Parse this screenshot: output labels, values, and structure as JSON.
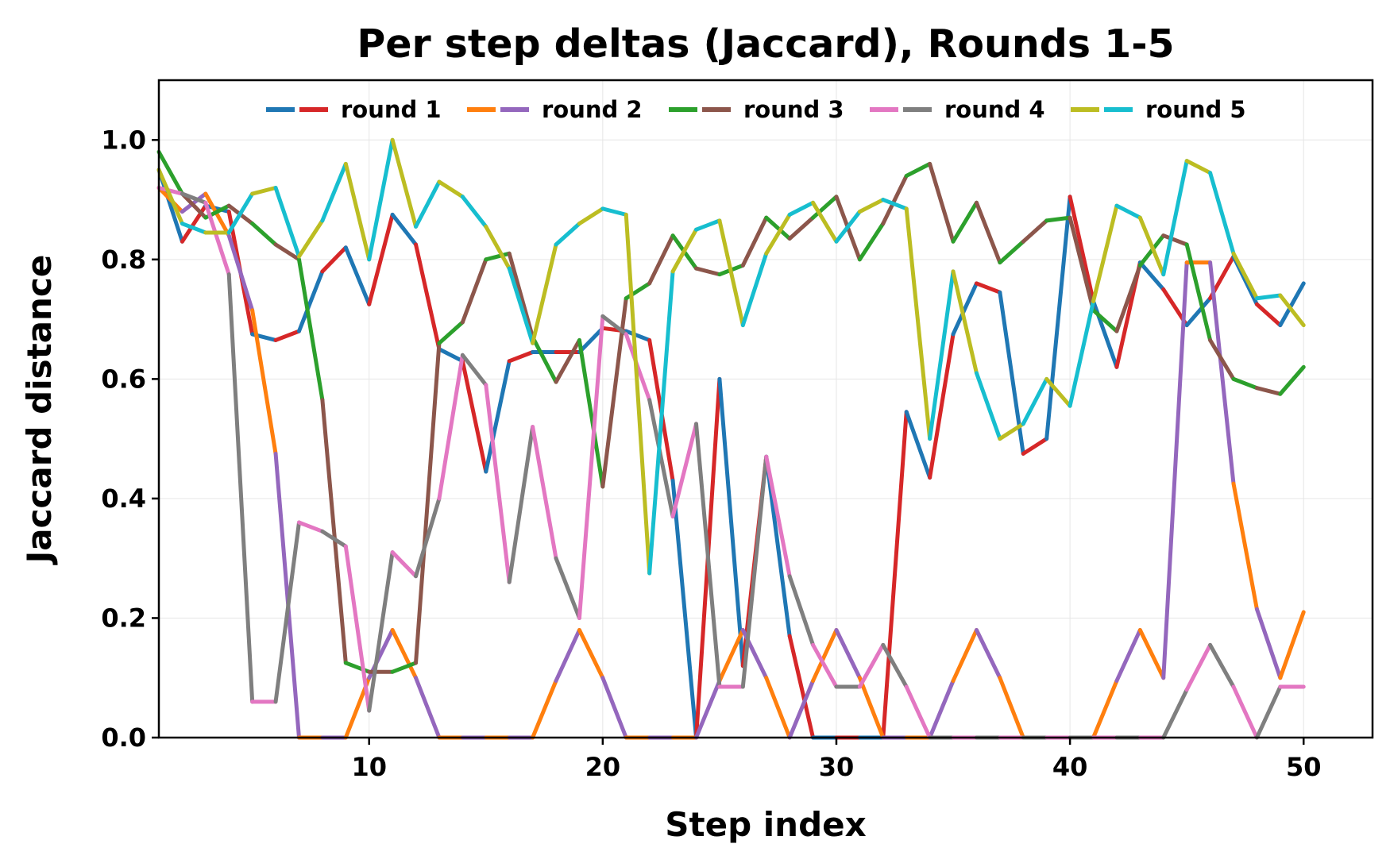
{
  "chart_data": {
    "type": "line",
    "title": "Per step deltas (Jaccard), Rounds 1-5",
    "xlabel": "Step index",
    "ylabel": "Jaccard distance",
    "xlim": [
      1,
      52.95
    ],
    "ylim": [
      0,
      1.1
    ],
    "xticks": [
      10,
      20,
      30,
      40,
      50
    ],
    "yticks": [
      0.0,
      0.2,
      0.4,
      0.6,
      0.8,
      1.0
    ],
    "grid": true,
    "legend_position": "top-center",
    "x": [
      1,
      2,
      3,
      4,
      5,
      6,
      7,
      8,
      9,
      10,
      11,
      12,
      13,
      14,
      15,
      16,
      17,
      18,
      19,
      20,
      21,
      22,
      23,
      24,
      25,
      26,
      27,
      28,
      29,
      30,
      31,
      32,
      33,
      34,
      35,
      36,
      37,
      38,
      39,
      40,
      41,
      42,
      43,
      44,
      45,
      46,
      47,
      48,
      49,
      50
    ],
    "series": [
      {
        "name": "round 1",
        "colors": [
          "#1f77b4",
          "#d62728"
        ],
        "values": [
          0.95,
          0.83,
          0.89,
          0.88,
          0.675,
          0.665,
          0.68,
          0.78,
          0.82,
          0.725,
          0.875,
          0.825,
          0.65,
          0.63,
          0.445,
          0.63,
          0.645,
          0.645,
          0.645,
          0.685,
          0.68,
          0.665,
          0.43,
          0.0,
          0.6,
          0.12,
          0.47,
          0.17,
          0.0,
          0.0,
          0.0,
          0.0,
          0.545,
          0.435,
          0.675,
          0.76,
          0.745,
          0.475,
          0.5,
          0.905,
          0.73,
          0.62,
          0.795,
          0.75,
          0.69,
          0.735,
          0.805,
          0.725,
          0.69,
          0.76
        ]
      },
      {
        "name": "round 2",
        "colors": [
          "#ff7f0e",
          "#9467bd"
        ],
        "values": [
          0.92,
          0.88,
          0.91,
          0.84,
          0.715,
          0.475,
          0.0,
          0.0,
          0.0,
          0.1,
          0.18,
          0.1,
          0.0,
          0.0,
          0.0,
          0.0,
          0.0,
          0.095,
          0.18,
          0.1,
          0.0,
          0.0,
          0.0,
          0.0,
          0.095,
          0.18,
          0.1,
          0.0,
          0.095,
          0.18,
          0.1,
          0.0,
          0.0,
          0.0,
          0.095,
          0.18,
          0.1,
          0.0,
          0.0,
          0.0,
          0.0,
          0.095,
          0.18,
          0.1,
          0.795,
          0.795,
          0.425,
          0.215,
          0.1,
          0.21
        ]
      },
      {
        "name": "round 3",
        "colors": [
          "#2ca02c",
          "#8c564b"
        ],
        "values": [
          0.98,
          0.91,
          0.87,
          0.89,
          0.86,
          0.825,
          0.8,
          0.565,
          0.125,
          0.11,
          0.11,
          0.125,
          0.66,
          0.695,
          0.8,
          0.81,
          0.67,
          0.595,
          0.665,
          0.42,
          0.735,
          0.76,
          0.84,
          0.785,
          0.775,
          0.79,
          0.87,
          0.835,
          0.87,
          0.905,
          0.8,
          0.86,
          0.94,
          0.96,
          0.83,
          0.895,
          0.795,
          0.83,
          0.865,
          0.87,
          0.715,
          0.68,
          0.79,
          0.84,
          0.825,
          0.665,
          0.6,
          0.585,
          0.575,
          0.62
        ]
      },
      {
        "name": "round 4",
        "colors": [
          "#e377c2",
          "#7f7f7f"
        ],
        "values": [
          0.92,
          0.91,
          0.895,
          0.775,
          0.06,
          0.06,
          0.36,
          0.345,
          0.32,
          0.045,
          0.31,
          0.27,
          0.4,
          0.64,
          0.59,
          0.26,
          0.52,
          0.3,
          0.2,
          0.705,
          0.675,
          0.565,
          0.37,
          0.525,
          0.085,
          0.085,
          0.47,
          0.27,
          0.155,
          0.085,
          0.085,
          0.155,
          0.085,
          0.0,
          0.0,
          0.0,
          0.0,
          0.0,
          0.0,
          0.0,
          0.0,
          0.0,
          0.0,
          0.0,
          0.08,
          0.155,
          0.085,
          0.0,
          0.085,
          0.085
        ]
      },
      {
        "name": "round 5",
        "colors": [
          "#bcbd22",
          "#17becf"
        ],
        "values": [
          0.95,
          0.86,
          0.845,
          0.845,
          0.91,
          0.92,
          0.805,
          0.865,
          0.96,
          0.8,
          1.0,
          0.855,
          0.93,
          0.905,
          0.855,
          0.785,
          0.66,
          0.825,
          0.86,
          0.885,
          0.875,
          0.275,
          0.78,
          0.85,
          0.865,
          0.69,
          0.81,
          0.875,
          0.895,
          0.83,
          0.88,
          0.9,
          0.885,
          0.5,
          0.78,
          0.61,
          0.5,
          0.525,
          0.6,
          0.555,
          0.73,
          0.89,
          0.87,
          0.775,
          0.965,
          0.945,
          0.81,
          0.735,
          0.74,
          0.69
        ]
      }
    ]
  }
}
